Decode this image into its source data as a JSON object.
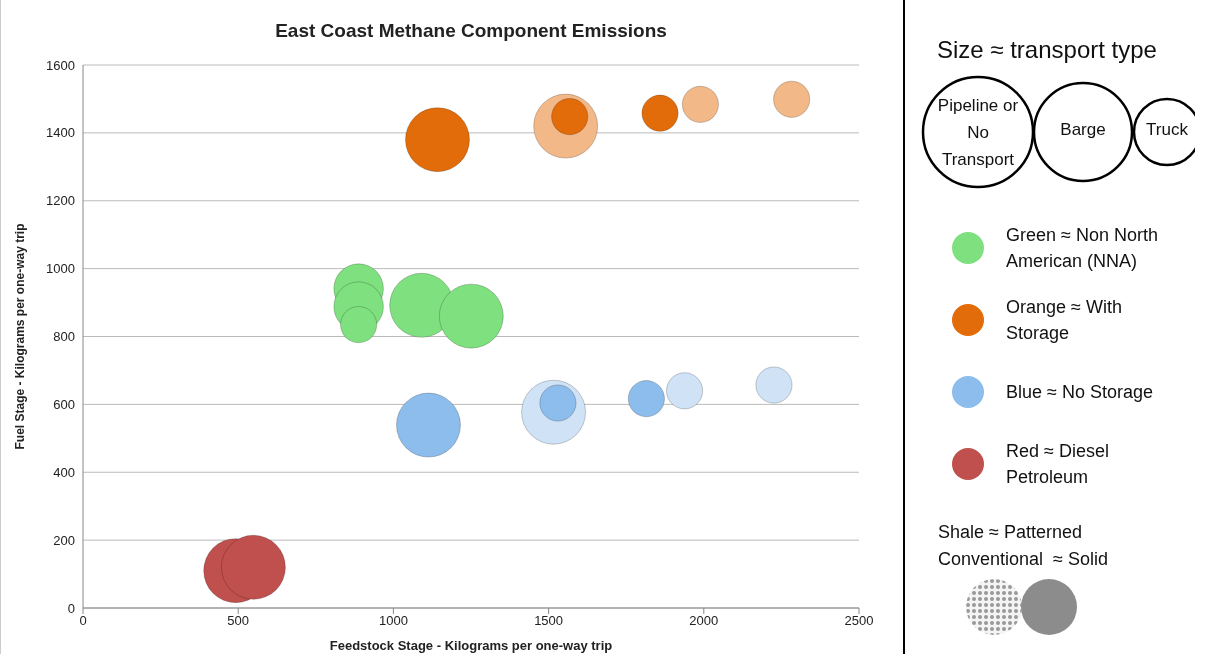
{
  "chart_data": {
    "type": "bubble",
    "title": "East Coast Methane Component Emissions",
    "xlabel": "Feedstock Stage - Kilograms per one-way trip",
    "ylabel": "Fuel Stage - Kilograms per one-way trip",
    "xlim": [
      0,
      2500
    ],
    "xticks": [
      0,
      500,
      1000,
      1500,
      2000,
      2500
    ],
    "ylim": [
      0,
      1600
    ],
    "yticks": [
      0,
      200,
      400,
      600,
      800,
      1000,
      1200,
      1400,
      1600
    ],
    "grid": "y",
    "legend": "right",
    "series": [
      {
        "name": "Green ≈ Non North American (NNA)",
        "color": "#7ee07e",
        "x": [
          888,
          888,
          888,
          1091,
          1251
        ],
        "values": [
          941,
          888,
          835,
          892,
          860
        ],
        "sizes": [
          0.6,
          0.6,
          0.32,
          1,
          1
        ],
        "colors": [
          "#7ee07e",
          "#7ee07e",
          "#7ee07e",
          "#7ee07e",
          "#7ee07e"
        ]
      },
      {
        "name": "Orange ≈ With Storage",
        "color": "#e36c0a",
        "x": [
          1142,
          1555,
          1568,
          1859,
          1989,
          2283
        ],
        "values": [
          1380,
          1420,
          1448,
          1458,
          1484,
          1499
        ],
        "sizes": [
          1,
          1,
          0.32,
          0.32,
          0.32,
          0.32
        ],
        "colors": [
          "#e36c0a",
          "#f2b887",
          "#e36c0a",
          "#e36c0a",
          "#f2b887",
          "#f2b887"
        ]
      },
      {
        "name": "Blue ≈ No Storage",
        "color": "#8dbdec",
        "x": [
          1113,
          1516,
          1530,
          1815,
          1938,
          2226
        ],
        "values": [
          539,
          577,
          604,
          617,
          640,
          657
        ],
        "sizes": [
          1,
          1,
          0.32,
          0.32,
          0.32,
          0.32
        ],
        "colors": [
          "#8dbdec",
          "#d0e2f5",
          "#8dbdec",
          "#8dbdec",
          "#d0e2f5",
          "#d0e2f5"
        ]
      },
      {
        "name": "Red ≈ Diesel Petroleum",
        "color": "#c0504d",
        "x": [
          492,
          549
        ],
        "values": [
          110,
          120
        ],
        "sizes": [
          1,
          1
        ],
        "colors": [
          "#c0504d",
          "#c0504d"
        ]
      }
    ],
    "annotations": [
      "Size ≈ transport type",
      "Pipeline or No Transport",
      "Barge",
      "Truck",
      "Shale ≈ Patterned",
      "Conventional  ≈ Solid"
    ]
  }
}
